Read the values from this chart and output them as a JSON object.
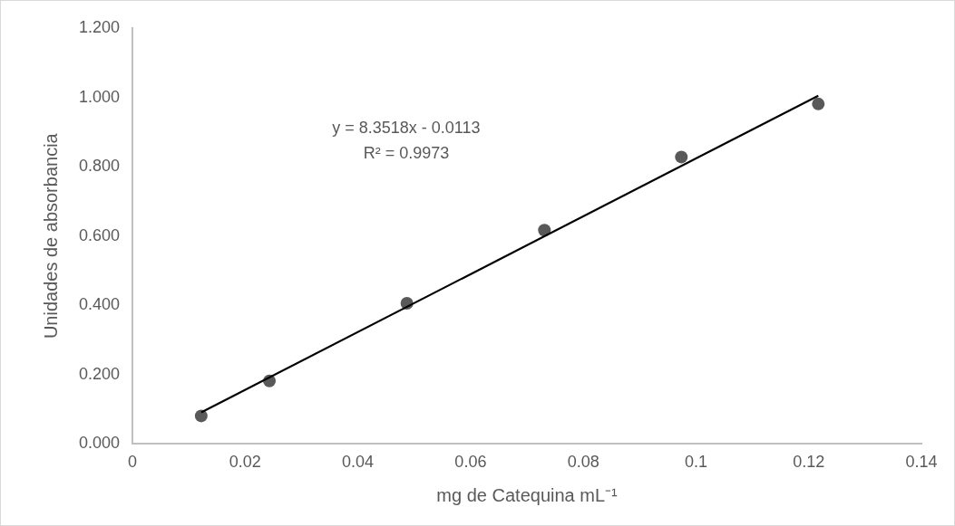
{
  "chart_data": {
    "type": "scatter",
    "xlabel": "mg de Catequina mL⁻¹",
    "ylabel": "Unidades de absorbancia",
    "x": [
      0.0122,
      0.0243,
      0.0487,
      0.0731,
      0.0974,
      0.1217
    ],
    "series": [
      {
        "type": "scatter",
        "color": "#595959",
        "values": [
          0.081,
          0.182,
          0.406,
          0.617,
          0.828,
          0.981
        ]
      },
      {
        "type": "line",
        "color": "#000000",
        "x": [
          0.0122,
          0.1217
        ],
        "values": [
          0.091,
          1.005
        ],
        "marker": "none"
      }
    ],
    "annotations": [
      "y = 8.3518x - 0.0113",
      "R² = 0.9973"
    ],
    "xlim": [
      0,
      0.14
    ],
    "xticks": [
      0,
      0.02,
      0.04,
      0.06,
      0.08,
      0.1,
      0.12,
      0.14
    ],
    "ylim": [
      0,
      1.2
    ],
    "yticks": [
      {
        "value": 0,
        "label": "0.000"
      },
      {
        "value": 0.2,
        "label": "0.200"
      },
      {
        "value": 0.4,
        "label": "0.400"
      },
      {
        "value": 0.6,
        "label": "0.600"
      },
      {
        "value": 0.8,
        "label": "0.800"
      },
      {
        "value": 1,
        "label": "1.000"
      },
      {
        "value": 1.2,
        "label": "1.200"
      }
    ],
    "grid": false,
    "legend": false,
    "marker": "circle"
  }
}
